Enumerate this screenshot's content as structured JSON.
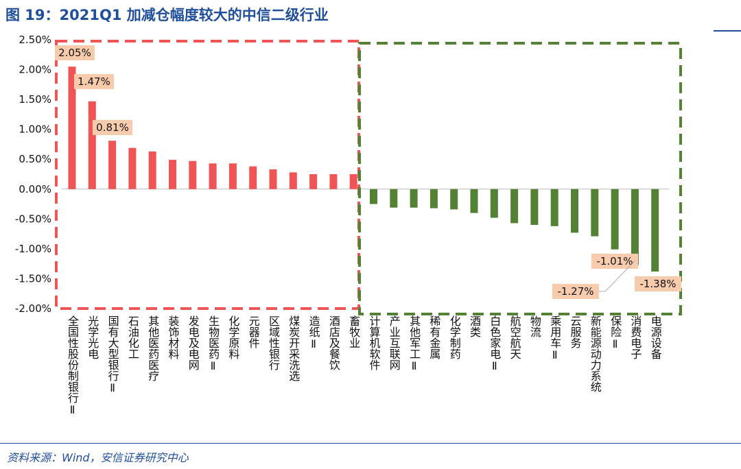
{
  "title": "图 19：2021Q1 加减仓幅度较大的中信二级行业",
  "source": "资料来源：Wind，安信证券研究中心",
  "chart_data": {
    "type": "bar",
    "title": "图 19：2021Q1 加减仓幅度较大的中信二级行业",
    "ylim": [
      -2.0,
      2.5
    ],
    "yticks": [
      "2.50%",
      "2.00%",
      "1.50%",
      "1.00%",
      "0.50%",
      "0.00%",
      "-0.50%",
      "-1.00%",
      "-1.50%",
      "-2.00%"
    ],
    "unit": "%",
    "grid": false,
    "colors": {
      "positive": "#F05454",
      "negative": "#548235",
      "label_bg": "#F8CBAD"
    },
    "categories": [
      "全国性股份制银行Ⅱ",
      "光学光电",
      "国有大型银行Ⅱ",
      "石油化工",
      "其他医药医疗",
      "装饰材料",
      "发电及电网",
      "生物医药Ⅱ",
      "化学原料",
      "元器件",
      "区域性银行",
      "煤炭开采洗选",
      "造纸Ⅱ",
      "酒店及餐饮",
      "畜牧业",
      "计算机软件",
      "产业互联网",
      "其他军工Ⅱ",
      "稀有金属",
      "化学制药",
      "酒类",
      "白色家电Ⅱ",
      "航空航天",
      "物流",
      "乘用车Ⅱ",
      "云服务",
      "新能源动力系统",
      "保险Ⅱ",
      "消费电子",
      "电源设备"
    ],
    "values": [
      2.05,
      1.47,
      0.81,
      0.69,
      0.63,
      0.49,
      0.47,
      0.43,
      0.43,
      0.38,
      0.33,
      0.28,
      0.25,
      0.25,
      0.25,
      -0.25,
      -0.31,
      -0.31,
      -0.32,
      -0.34,
      -0.4,
      -0.48,
      -0.57,
      -0.6,
      -0.62,
      -0.73,
      -0.79,
      -1.01,
      -1.27,
      -1.38
    ],
    "data_labels": [
      {
        "index": 0,
        "text": "2.05%"
      },
      {
        "index": 1,
        "text": "1.47%"
      },
      {
        "index": 2,
        "text": "0.81%"
      },
      {
        "index": 27,
        "text": "-1.01%"
      },
      {
        "index": 28,
        "text": "-1.27%"
      },
      {
        "index": 29,
        "text": "-1.38%"
      }
    ]
  }
}
